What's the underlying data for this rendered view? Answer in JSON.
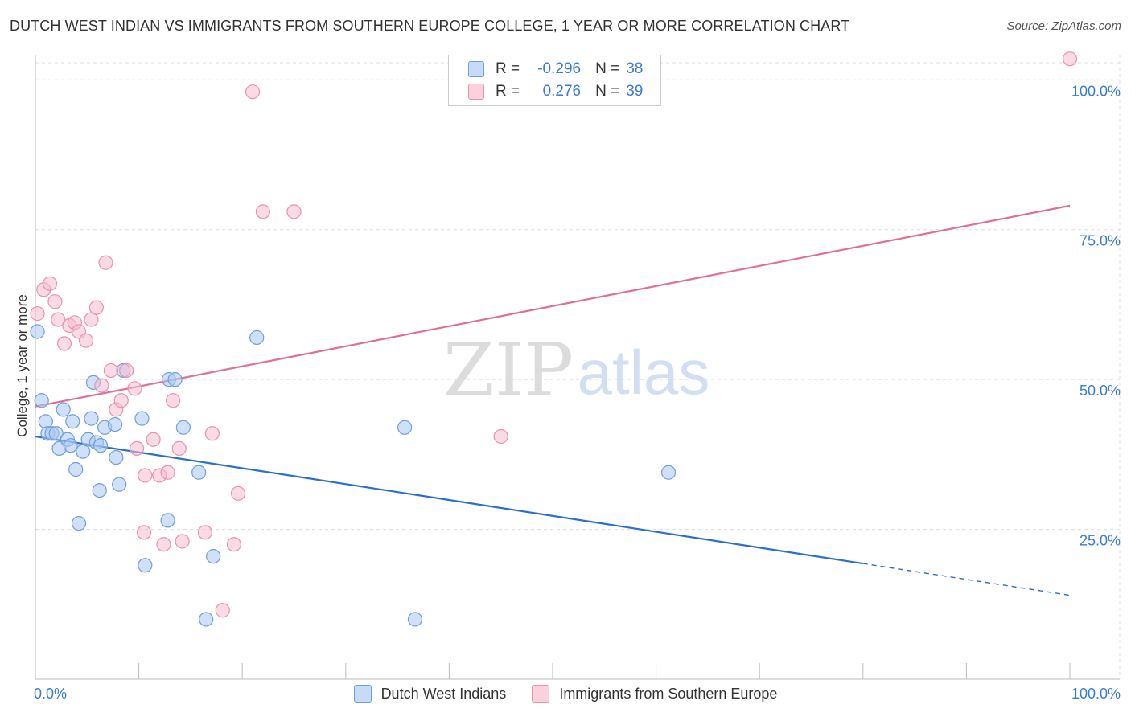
{
  "title": "DUTCH WEST INDIAN VS IMMIGRANTS FROM SOUTHERN EUROPE COLLEGE, 1 YEAR OR MORE CORRELATION CHART",
  "source": "Source: ZipAtlas.com",
  "watermark": {
    "zip": "ZIP",
    "atlas": "atlas"
  },
  "legend": {
    "r_label": "R =",
    "n_label": "N =",
    "rows": [
      {
        "r": "-0.296",
        "n": "38"
      },
      {
        "r": "0.276",
        "n": "39"
      }
    ]
  },
  "chart_data": {
    "type": "scatter",
    "title": "DUTCH WEST INDIAN VS IMMIGRANTS FROM SOUTHERN EUROPE COLLEGE, 1 YEAR OR MORE CORRELATION CHART",
    "xlabel": "",
    "ylabel": "College, 1 year or more",
    "xlim": [
      0,
      100
    ],
    "ylim": [
      0,
      105
    ],
    "x_tick_labels": [
      "0.0%",
      "100.0%"
    ],
    "y_ticks": [
      25,
      50,
      75,
      100
    ],
    "y_tick_labels": [
      "25.0%",
      "50.0%",
      "75.0%",
      "100.0%"
    ],
    "grid": true,
    "colors": {
      "blue_fill": "#a9c8f0",
      "blue_stroke": "#6f9fdc",
      "blue_line": "#2a6fd0",
      "pink_fill": "#f6bccd",
      "pink_stroke": "#e893ad",
      "pink_line": "#e06f96",
      "tick_text": "#3a7bd5"
    },
    "series": [
      {
        "name": "Dutch West Indians",
        "color": "blue",
        "trend": {
          "x0": 0,
          "y0": 40.5,
          "x1": 100,
          "y1": 14,
          "solid_until": 80
        },
        "points": [
          {
            "x": 0.2,
            "y": 58
          },
          {
            "x": 0.6,
            "y": 46.5
          },
          {
            "x": 1.0,
            "y": 43
          },
          {
            "x": 1.2,
            "y": 41
          },
          {
            "x": 1.6,
            "y": 41
          },
          {
            "x": 2.0,
            "y": 41
          },
          {
            "x": 2.3,
            "y": 38.5
          },
          {
            "x": 2.7,
            "y": 45
          },
          {
            "x": 3.1,
            "y": 40
          },
          {
            "x": 3.4,
            "y": 39
          },
          {
            "x": 3.6,
            "y": 43
          },
          {
            "x": 3.9,
            "y": 35
          },
          {
            "x": 4.2,
            "y": 26
          },
          {
            "x": 4.6,
            "y": 38
          },
          {
            "x": 5.1,
            "y": 40
          },
          {
            "x": 5.4,
            "y": 43.5
          },
          {
            "x": 5.6,
            "y": 49.5
          },
          {
            "x": 5.9,
            "y": 39.5
          },
          {
            "x": 6.2,
            "y": 31.5
          },
          {
            "x": 6.3,
            "y": 39
          },
          {
            "x": 6.7,
            "y": 42
          },
          {
            "x": 7.7,
            "y": 42.5
          },
          {
            "x": 7.8,
            "y": 37
          },
          {
            "x": 8.1,
            "y": 32.5
          },
          {
            "x": 8.5,
            "y": 51.5
          },
          {
            "x": 10.3,
            "y": 43.5
          },
          {
            "x": 10.6,
            "y": 19
          },
          {
            "x": 12.8,
            "y": 26.5
          },
          {
            "x": 12.9,
            "y": 50
          },
          {
            "x": 13.5,
            "y": 50
          },
          {
            "x": 14.3,
            "y": 42
          },
          {
            "x": 15.8,
            "y": 34.5
          },
          {
            "x": 16.5,
            "y": 10
          },
          {
            "x": 17.2,
            "y": 20.5
          },
          {
            "x": 21.4,
            "y": 57
          },
          {
            "x": 35.7,
            "y": 42
          },
          {
            "x": 36.7,
            "y": 10
          },
          {
            "x": 61.2,
            "y": 34.5
          }
        ]
      },
      {
        "name": "Immigrants from Southern Europe",
        "color": "pink",
        "trend": {
          "x0": 0,
          "y0": 45.5,
          "x1": 100,
          "y1": 79
        },
        "points": [
          {
            "x": 0.2,
            "y": 61
          },
          {
            "x": 0.8,
            "y": 65
          },
          {
            "x": 1.4,
            "y": 66
          },
          {
            "x": 1.9,
            "y": 63
          },
          {
            "x": 2.2,
            "y": 60
          },
          {
            "x": 2.8,
            "y": 56
          },
          {
            "x": 3.3,
            "y": 59
          },
          {
            "x": 3.8,
            "y": 59.5
          },
          {
            "x": 4.2,
            "y": 58
          },
          {
            "x": 4.9,
            "y": 56.5
          },
          {
            "x": 5.4,
            "y": 60
          },
          {
            "x": 5.9,
            "y": 62
          },
          {
            "x": 6.4,
            "y": 49
          },
          {
            "x": 6.8,
            "y": 69.5
          },
          {
            "x": 7.3,
            "y": 51.5
          },
          {
            "x": 7.8,
            "y": 45
          },
          {
            "x": 8.3,
            "y": 46.5
          },
          {
            "x": 8.8,
            "y": 51.5
          },
          {
            "x": 9.6,
            "y": 48.5
          },
          {
            "x": 9.8,
            "y": 38.5
          },
          {
            "x": 10.5,
            "y": 24.5
          },
          {
            "x": 10.6,
            "y": 34
          },
          {
            "x": 11.4,
            "y": 40
          },
          {
            "x": 12.0,
            "y": 34
          },
          {
            "x": 12.4,
            "y": 22.5
          },
          {
            "x": 12.8,
            "y": 34.5
          },
          {
            "x": 13.3,
            "y": 46.5
          },
          {
            "x": 13.9,
            "y": 38.5
          },
          {
            "x": 14.2,
            "y": 23
          },
          {
            "x": 16.4,
            "y": 24.5
          },
          {
            "x": 17.1,
            "y": 41
          },
          {
            "x": 18.1,
            "y": 11.5
          },
          {
            "x": 19.2,
            "y": 22.5
          },
          {
            "x": 19.6,
            "y": 31
          },
          {
            "x": 21.0,
            "y": 98
          },
          {
            "x": 22.0,
            "y": 78
          },
          {
            "x": 25.0,
            "y": 78
          },
          {
            "x": 45.0,
            "y": 40.5
          },
          {
            "x": 100,
            "y": 103.5
          }
        ]
      }
    ]
  }
}
